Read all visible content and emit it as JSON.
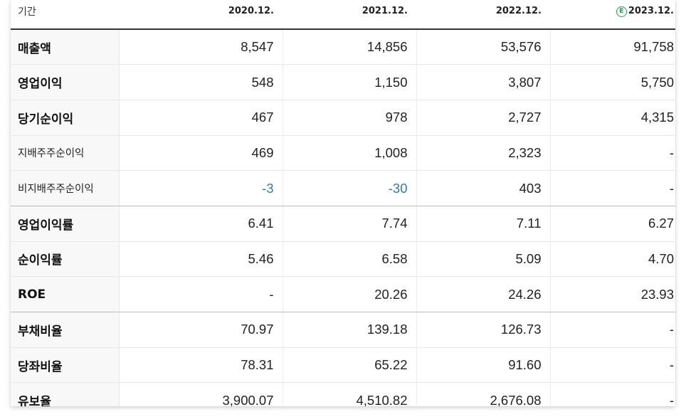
{
  "table": {
    "header": {
      "label": "기간",
      "periods": [
        "2020.12.",
        "2021.12.",
        "2022.12.",
        "2023.12."
      ],
      "estimate_badge": "E",
      "estimate_color": "#14a84a"
    },
    "rows": [
      {
        "label": "매출액",
        "values": [
          "8,547",
          "14,856",
          "53,576",
          "91,758"
        ]
      },
      {
        "label": "영업이익",
        "values": [
          "548",
          "1,150",
          "3,807",
          "5,750"
        ]
      },
      {
        "label": "당기순이익",
        "values": [
          "467",
          "978",
          "2,727",
          "4,315"
        ]
      },
      {
        "label": "지배주주순이익",
        "values": [
          "469",
          "1,008",
          "2,323",
          "-"
        ]
      },
      {
        "label": "비지배주주순이익",
        "values": [
          "-3",
          "-30",
          "403",
          "-"
        ]
      },
      {
        "label": "영업이익률",
        "values": [
          "6.41",
          "7.74",
          "7.11",
          "6.27"
        ]
      },
      {
        "label": "순이익률",
        "values": [
          "5.46",
          "6.58",
          "5.09",
          "4.70"
        ]
      },
      {
        "label": "ROE",
        "values": [
          "-",
          "20.26",
          "24.26",
          "23.93"
        ]
      },
      {
        "label": "부채비율",
        "values": [
          "70.97",
          "139.18",
          "126.73",
          "-"
        ]
      },
      {
        "label": "당좌비율",
        "values": [
          "78.31",
          "65.22",
          "91.60",
          "-"
        ]
      },
      {
        "label": "유보율",
        "values": [
          "3,900.07",
          "4,510.82",
          "2,676.08",
          "-"
        ]
      }
    ],
    "negative_color": "#2d7bc6"
  }
}
